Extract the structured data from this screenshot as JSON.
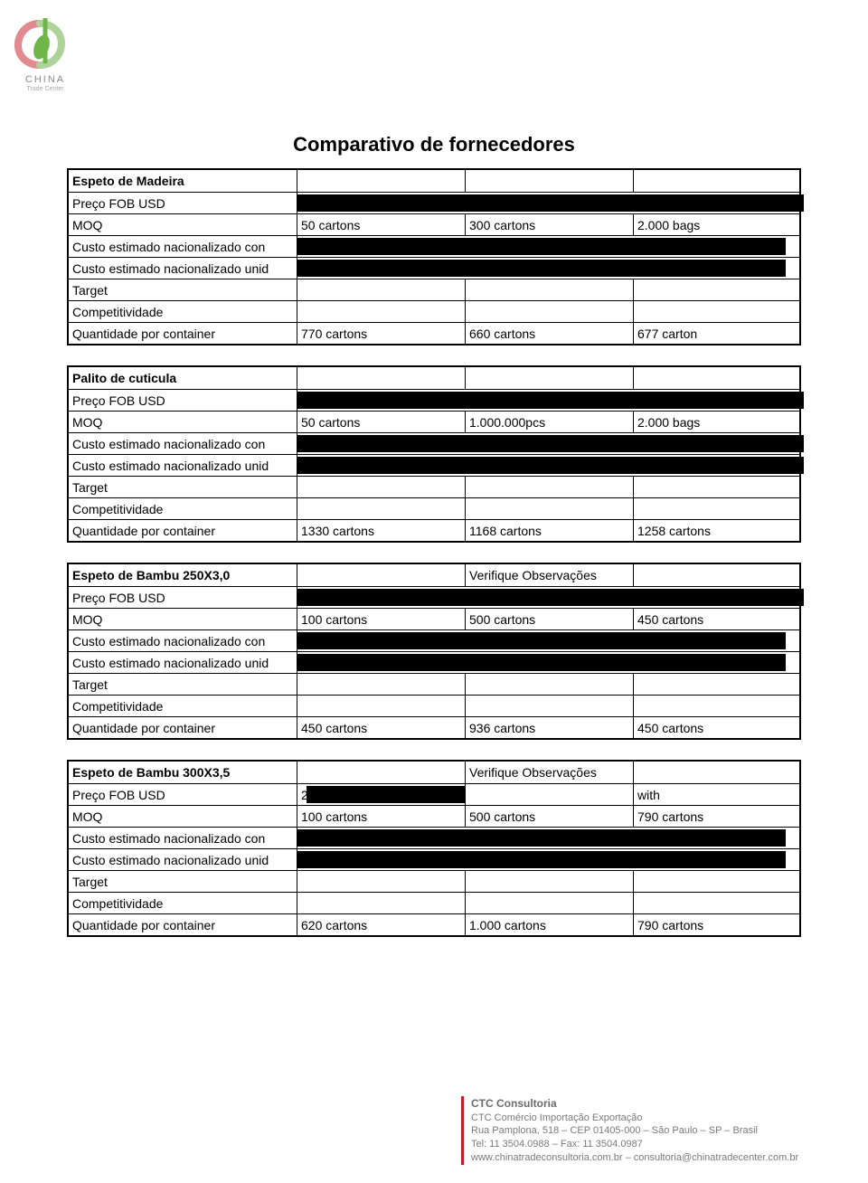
{
  "logo": {
    "main": "CHINA",
    "sub": "Trade Center",
    "colors": {
      "green": "#6fb54a",
      "red": "#e28a8f",
      "gray": "#8c8c8c"
    }
  },
  "title": "Comparativo de fornecedores",
  "sections": [
    {
      "name": "Espeto de Madeira",
      "note": "",
      "rows": [
        {
          "label": "Preço FOB USD",
          "c1": "",
          "c2": "",
          "c3": "",
          "redacted": true
        },
        {
          "label": "MOQ",
          "c1": "50 cartons",
          "c2": "300 cartons",
          "c3": "2.000 bags"
        },
        {
          "label": "Custo estimado nacionalizado con",
          "c1": "",
          "c2": "",
          "c3": "",
          "redacted": true,
          "short": true
        },
        {
          "label": "Custo estimado nacionalizado unid",
          "c1": "",
          "c2": "",
          "c3": "",
          "redacted": true,
          "short": true
        },
        {
          "label": "Target",
          "c1": "",
          "c2": "",
          "c3": ""
        },
        {
          "label": "Competitividade",
          "c1": "",
          "c2": "",
          "c3": ""
        },
        {
          "label": "Quantidade por container",
          "c1": "770 cartons",
          "c2": "660 cartons",
          "c3": "677 carton"
        }
      ]
    },
    {
      "name": "Palito de cuticula",
      "note": "",
      "rows": [
        {
          "label": "Preço FOB USD",
          "c1": "",
          "c2": "",
          "c3": "",
          "redacted": true
        },
        {
          "label": "MOQ",
          "c1": "50 cartons",
          "c2": "1.000.000pcs",
          "c3": "2.000 bags"
        },
        {
          "label": "Custo estimado nacionalizado con",
          "c1": "",
          "c2": "",
          "c3": "",
          "redacted": true
        },
        {
          "label": "Custo estimado nacionalizado unid",
          "c1": "",
          "c2": "",
          "c3": "",
          "redacted": true
        },
        {
          "label": "Target",
          "c1": "",
          "c2": "",
          "c3": ""
        },
        {
          "label": "Competitividade",
          "c1": "",
          "c2": "",
          "c3": ""
        },
        {
          "label": "Quantidade por container",
          "c1": "1330 cartons",
          "c2": "1168 cartons",
          "c3": "1258 cartons"
        }
      ]
    },
    {
      "name": "Espeto de Bambu 250X3,0",
      "note": "Verifique Observações",
      "rows": [
        {
          "label": "Preço FOB USD",
          "c1": "",
          "c2": "",
          "c3": "",
          "redacted": true
        },
        {
          "label": "MOQ",
          "c1": "100 cartons",
          "c2": "500 cartons",
          "c3": "450 cartons"
        },
        {
          "label": "Custo estimado nacionalizado con",
          "c1": "",
          "c2": "",
          "c3": "",
          "redacted": true,
          "short": true
        },
        {
          "label": "Custo estimado nacionalizado unid",
          "c1": "",
          "c2": "",
          "c3": "",
          "redacted": true,
          "short": true
        },
        {
          "label": "Target",
          "c1": "",
          "c2": "",
          "c3": ""
        },
        {
          "label": "Competitividade",
          "c1": "",
          "c2": "",
          "c3": ""
        },
        {
          "label": "Quantidade por container",
          "c1": "450 cartons",
          "c2": "936 cartons",
          "c3": "450 cartons"
        }
      ]
    },
    {
      "name": "Espeto de Bambu 300X3,5",
      "note": "Verifique Observações",
      "rows": [
        {
          "label": "Preço FOB USD",
          "c1": "2",
          "c2": "",
          "c3": "  with",
          "redacted": true,
          "partial": true
        },
        {
          "label": "MOQ",
          "c1": "100 cartons",
          "c2": "500 cartons",
          "c3": "790 cartons"
        },
        {
          "label": "Custo estimado nacionalizado con",
          "c1": "",
          "c2": "",
          "c3": "",
          "redacted": true,
          "short": true
        },
        {
          "label": "Custo estimado nacionalizado unid",
          "c1": "",
          "c2": "",
          "c3": "",
          "redacted": true,
          "short": true
        },
        {
          "label": "Target",
          "c1": "",
          "c2": "",
          "c3": ""
        },
        {
          "label": "Competitividade",
          "c1": "",
          "c2": "",
          "c3": ""
        },
        {
          "label": "Quantidade por container",
          "c1": "620 cartons",
          "c2": "1.000 cartons",
          "c3": "790 cartons"
        }
      ]
    }
  ],
  "footer": {
    "company": "CTC Consultoria",
    "line1": "CTC Comércio Importação Exportação",
    "line2": "Rua Pamplona, 518 – CEP 01405-000  – São Paulo – SP – Brasil",
    "line3": "Tel: 11 3504.0988 – Fax: 11 3504.0987",
    "line4": "www.chinatradeconsultoria.com.br – consultoria@chinatradecenter.com.br"
  },
  "colors": {
    "text": "#000000",
    "note": "#cc2a1e",
    "footer_border": "#c51a2d",
    "footer_text": "#7a7a7a",
    "redaction": "#000000",
    "background": "#ffffff"
  }
}
